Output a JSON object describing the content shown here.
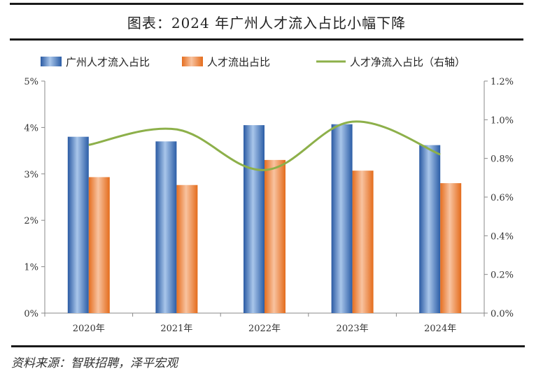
{
  "title": "图表：2024 年广州人才流入占比小幅下降",
  "source": "资料来源：智联招聘，泽平宏观",
  "chart_data": {
    "type": "bar",
    "categories": [
      "2020年",
      "2021年",
      "2022年",
      "2023年",
      "2024年"
    ],
    "series": [
      {
        "name": "广州人才流入占比",
        "kind": "bar",
        "axis": "left",
        "values": [
          3.8,
          3.7,
          4.05,
          4.07,
          3.62
        ],
        "color": "#3c72b8"
      },
      {
        "name": "人才流出占比",
        "kind": "bar",
        "axis": "left",
        "values": [
          2.93,
          2.76,
          3.3,
          3.07,
          2.8
        ],
        "color": "#e8782c"
      },
      {
        "name": "人才净流入占比（右轴）",
        "kind": "line",
        "axis": "right",
        "values": [
          0.87,
          0.95,
          0.74,
          0.99,
          0.82
        ],
        "color": "#8db04a"
      }
    ],
    "y_left": {
      "min": 0,
      "max": 5,
      "step": 1,
      "ticks": [
        "0%",
        "1%",
        "2%",
        "3%",
        "4%",
        "5%"
      ]
    },
    "y_right": {
      "min": 0,
      "max": 1.2,
      "step": 0.2,
      "ticks": [
        "0.0%",
        "0.2%",
        "0.4%",
        "0.6%",
        "0.8%",
        "1.0%",
        "1.2%"
      ]
    },
    "legend_position": "top",
    "grid": false
  }
}
